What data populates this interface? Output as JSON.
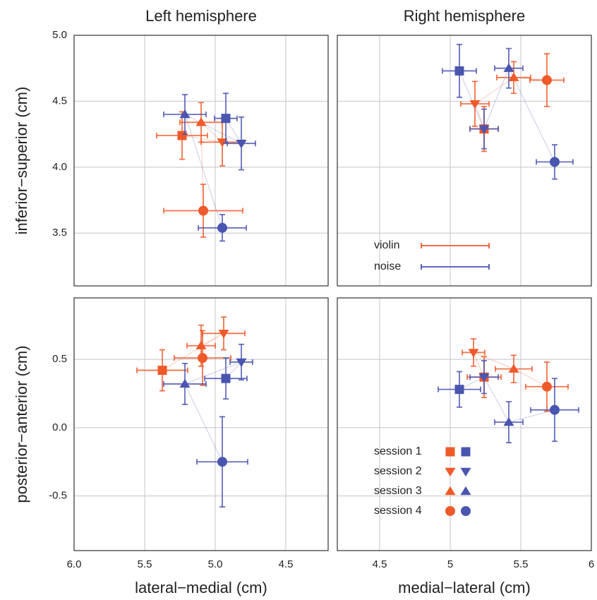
{
  "chart_data": [
    {
      "type": "scatter",
      "title": "Left hemisphere",
      "ylabel": "inferior−superior (cm)",
      "xlim": [
        6.0,
        4.2
      ],
      "ylim": [
        3.1,
        5.0
      ],
      "xticks": [
        {
          "value": 6,
          "label": "6.0"
        },
        5.5,
        {
          "value": 5,
          "label": "5.0"
        },
        4.5
      ],
      "show_xtick_labels": false,
      "yticks": [
        {
          "value": 5,
          "label": "5.0"
        },
        4.5,
        {
          "value": 4,
          "label": "4.0"
        },
        3.5
      ],
      "show_ytick_labels": true,
      "grid": true,
      "series": [
        {
          "name": "violin",
          "color": "#ee5a2a",
          "x": [
            5.235,
            4.95,
            5.1,
            5.085
          ],
          "values": [
            4.24,
            4.19,
            4.34,
            3.67
          ],
          "xerr": [
            0.18,
            0.15,
            0.15,
            0.28
          ],
          "yerr": [
            0.18,
            0.18,
            0.15,
            0.2
          ]
        },
        {
          "name": "noise",
          "color": "#4a55b0",
          "x": [
            4.925,
            4.815,
            5.215,
            4.95
          ],
          "values": [
            4.37,
            4.18,
            4.4,
            3.54
          ],
          "xerr": [
            0.08,
            0.1,
            0.15,
            0.17
          ],
          "yerr": [
            0.19,
            0.2,
            0.15,
            0.1
          ]
        }
      ]
    },
    {
      "type": "scatter",
      "title": "Right hemisphere",
      "xlim": [
        4.2,
        6.0
      ],
      "ylim": [
        3.1,
        5.0
      ],
      "xticks": [
        4.5,
        5,
        5.5,
        6
      ],
      "show_xtick_labels": false,
      "yticks": [
        5,
        4.5,
        4,
        3.5
      ],
      "show_ytick_labels": false,
      "grid": true,
      "legend": "lower left",
      "series": [
        {
          "name": "violin",
          "color": "#ee5a2a",
          "x": [
            5.24,
            5.175,
            5.45,
            5.685
          ],
          "values": [
            4.29,
            4.48,
            4.68,
            4.66
          ],
          "xerr": [
            0.1,
            0.1,
            0.12,
            0.12
          ],
          "yerr": [
            0.17,
            0.17,
            0.12,
            0.2
          ]
        },
        {
          "name": "noise",
          "color": "#4a55b0",
          "x": [
            5.065,
            5.24,
            5.415,
            5.74
          ],
          "values": [
            4.73,
            4.29,
            4.75,
            4.04
          ],
          "xerr": [
            0.12,
            0.1,
            0.1,
            0.13
          ],
          "yerr": [
            0.2,
            0.15,
            0.15,
            0.13
          ]
        }
      ]
    },
    {
      "type": "scatter",
      "xlabel": "lateral−medial (cm)",
      "ylabel": "posterior−anterior (cm)",
      "xlim": [
        6.0,
        4.2
      ],
      "ylim": [
        -0.9,
        0.95
      ],
      "xticks": [
        {
          "value": 6,
          "label": "6.0"
        },
        5.5,
        {
          "value": 5,
          "label": "5.0"
        },
        4.5
      ],
      "show_xtick_labels": true,
      "yticks": [
        0.5,
        {
          "value": 0,
          "label": "0.0"
        },
        -0.5
      ],
      "show_ytick_labels": true,
      "grid": true,
      "series": [
        {
          "name": "violin",
          "color": "#ee5a2a",
          "x": [
            5.375,
            4.94,
            5.1,
            5.09
          ],
          "values": [
            0.42,
            0.69,
            0.6,
            0.51
          ],
          "xerr": [
            0.18,
            0.15,
            0.1,
            0.2
          ],
          "yerr": [
            0.15,
            0.12,
            0.15,
            0.2
          ]
        },
        {
          "name": "noise",
          "color": "#4a55b0",
          "x": [
            4.925,
            4.815,
            5.215,
            4.95
          ],
          "values": [
            0.36,
            0.48,
            0.32,
            -0.25
          ],
          "xerr": [
            0.15,
            0.08,
            0.15,
            0.18
          ],
          "yerr": [
            0.15,
            0.13,
            0.15,
            0.33
          ]
        }
      ]
    },
    {
      "type": "scatter",
      "xlabel": "medial−lateral (cm)",
      "xlim": [
        4.2,
        6.0
      ],
      "ylim": [
        -0.9,
        0.95
      ],
      "xticks": [
        4.5,
        5,
        5.5,
        6
      ],
      "show_xtick_labels": true,
      "yticks": [
        0.5,
        0,
        -0.5
      ],
      "show_ytick_labels": false,
      "grid": true,
      "session_legend": {
        "labels": [
          "session 1",
          "session 2",
          "session 3",
          "session 4"
        ],
        "markers": [
          "square",
          "triangle-down",
          "triangle-up",
          "circle"
        ]
      },
      "series": [
        {
          "name": "violin",
          "color": "#ee5a2a",
          "x": [
            5.24,
            5.165,
            5.45,
            5.685
          ],
          "values": [
            0.37,
            0.55,
            0.43,
            0.3
          ],
          "xerr": [
            0.12,
            0.08,
            0.13,
            0.15
          ],
          "yerr": [
            0.15,
            0.1,
            0.1,
            0.18
          ]
        },
        {
          "name": "noise",
          "color": "#4a55b0",
          "x": [
            5.065,
            5.24,
            5.415,
            5.74
          ],
          "values": [
            0.28,
            0.37,
            0.04,
            0.13
          ],
          "xerr": [
            0.15,
            0.1,
            0.1,
            0.17
          ],
          "yerr": [
            0.13,
            0.12,
            0.15,
            0.23
          ]
        }
      ]
    }
  ]
}
